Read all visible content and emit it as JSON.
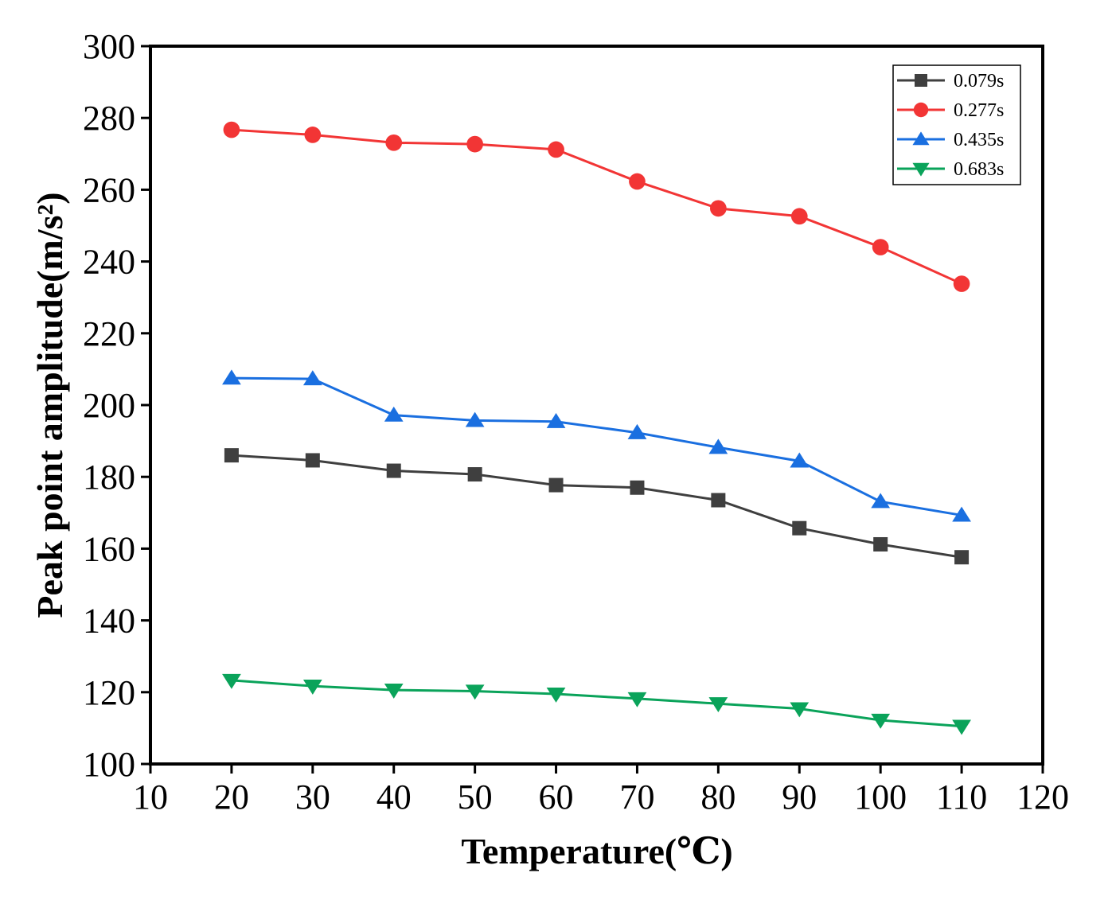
{
  "chart_data": {
    "type": "line",
    "title": "",
    "xlabel": "Temperature(℃)",
    "ylabel": "Peak point amplitude(m/s²)",
    "xlim": [
      10,
      120
    ],
    "ylim": [
      100,
      300
    ],
    "xticks": [
      10,
      20,
      30,
      40,
      50,
      60,
      70,
      80,
      90,
      100,
      110,
      120
    ],
    "yticks": [
      100,
      120,
      140,
      160,
      180,
      200,
      220,
      240,
      260,
      280,
      300
    ],
    "grid": false,
    "legend_position": "top-right",
    "x": [
      20,
      30,
      40,
      50,
      60,
      70,
      80,
      90,
      100,
      110
    ],
    "series": [
      {
        "name": "0.079s",
        "color": "#3f3f3f",
        "marker": "square",
        "values": [
          186,
          184.6,
          181.7,
          180.7,
          177.7,
          177,
          173.5,
          165.7,
          161.2,
          157.6
        ]
      },
      {
        "name": "0.277s",
        "color": "#f23535",
        "marker": "circle",
        "values": [
          276.7,
          275.3,
          273.1,
          272.7,
          271.2,
          262.3,
          254.8,
          252.6,
          244,
          233.8
        ]
      },
      {
        "name": "0.435s",
        "color": "#1a6fe0",
        "marker": "triangle-up",
        "values": [
          207.5,
          207.3,
          197.2,
          195.7,
          195.4,
          192.3,
          188.2,
          184.4,
          173.1,
          169.3
        ]
      },
      {
        "name": "0.683s",
        "color": "#0aa35a",
        "marker": "triangle-down",
        "values": [
          123.3,
          121.7,
          120.6,
          120.3,
          119.5,
          118.2,
          116.8,
          115.4,
          112.2,
          110.5
        ]
      }
    ]
  }
}
